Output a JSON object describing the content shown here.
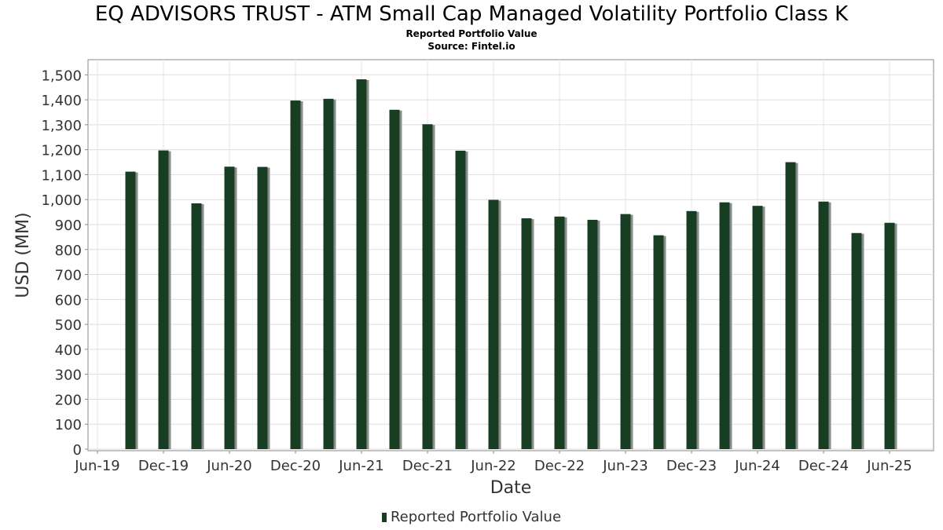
{
  "chart_data": {
    "type": "bar",
    "title": "EQ ADVISORS TRUST - ATM Small Cap Managed Volatility Portfolio Class K",
    "subtitle": "Reported Portfolio Value",
    "source": "Source: Fintel.io",
    "xlabel": "Date",
    "ylabel": "USD (MM)",
    "ylim": [
      0,
      1560
    ],
    "yticks": [
      0,
      100,
      200,
      300,
      400,
      500,
      600,
      700,
      800,
      900,
      1000,
      1100,
      1200,
      1300,
      1400,
      1500
    ],
    "ytick_labels": [
      "0",
      "100",
      "200",
      "300",
      "400",
      "500",
      "600",
      "700",
      "800",
      "900",
      "1,000",
      "1,100",
      "1,200",
      "1,300",
      "1,400",
      "1,500"
    ],
    "xticks": [
      "Jun-19",
      "Dec-19",
      "Jun-20",
      "Dec-20",
      "Jun-21",
      "Dec-21",
      "Jun-22",
      "Dec-22",
      "Jun-23",
      "Dec-23",
      "Jun-24",
      "Dec-24",
      "Jun-25"
    ],
    "x": [
      "2019-09",
      "2019-12",
      "2020-03",
      "2020-06",
      "2020-09",
      "2020-12",
      "2021-03",
      "2021-06",
      "2021-09",
      "2021-12",
      "2022-03",
      "2022-06",
      "2022-09",
      "2022-12",
      "2023-03",
      "2023-06",
      "2023-09",
      "2023-12",
      "2024-03",
      "2024-06",
      "2024-09",
      "2024-12",
      "2025-03",
      "2025-06"
    ],
    "series": [
      {
        "name": "Reported Portfolio Value",
        "color": "#173e22",
        "values": [
          1112,
          1197,
          985,
          1132,
          1131,
          1397,
          1404,
          1482,
          1360,
          1302,
          1196,
          999,
          925,
          932,
          919,
          942,
          857,
          954,
          989,
          975,
          1150,
          992,
          866,
          907
        ]
      }
    ],
    "grid": true,
    "legend": "bottom-center"
  }
}
